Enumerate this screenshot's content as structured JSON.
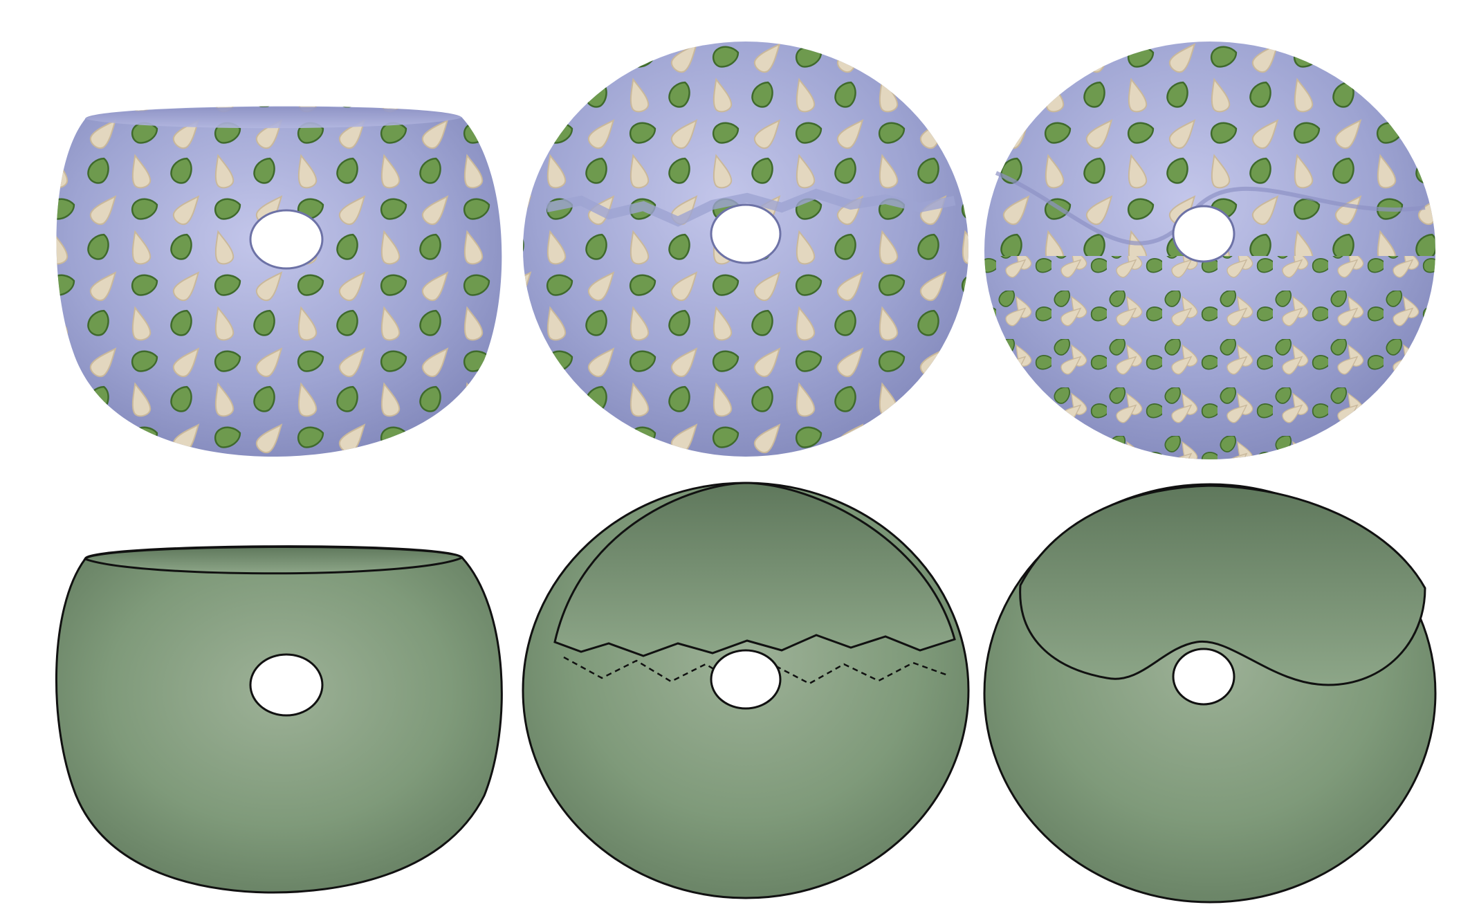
{
  "figure": {
    "rows": [
      {
        "row": "textured",
        "panels": [
          {
            "variant": "open-bowl",
            "cut": "flat-rim"
          },
          {
            "variant": "closed-sphere",
            "cut": "jagged-seam"
          },
          {
            "variant": "closed-sphere",
            "cut": "smooth-wave"
          }
        ]
      },
      {
        "row": "shaded",
        "panels": [
          {
            "variant": "open-bowl",
            "cut": "flat-rim"
          },
          {
            "variant": "closed-sphere",
            "cut": "jagged-seam"
          },
          {
            "variant": "closed-sphere",
            "cut": "smooth-wave"
          }
        ]
      }
    ],
    "colors": {
      "texture_base": "#9ea4d2",
      "leaf_green": "#6e9a4e",
      "leaf_green_edge": "#3f6a2c",
      "leaf_beige": "#e3d7bf",
      "leaf_beige_edge": "#c9b89b",
      "surface_green": "#7f9a7a",
      "surface_green_dark": "#5e775b",
      "outline": "#111111",
      "background": "#ffffff"
    }
  }
}
